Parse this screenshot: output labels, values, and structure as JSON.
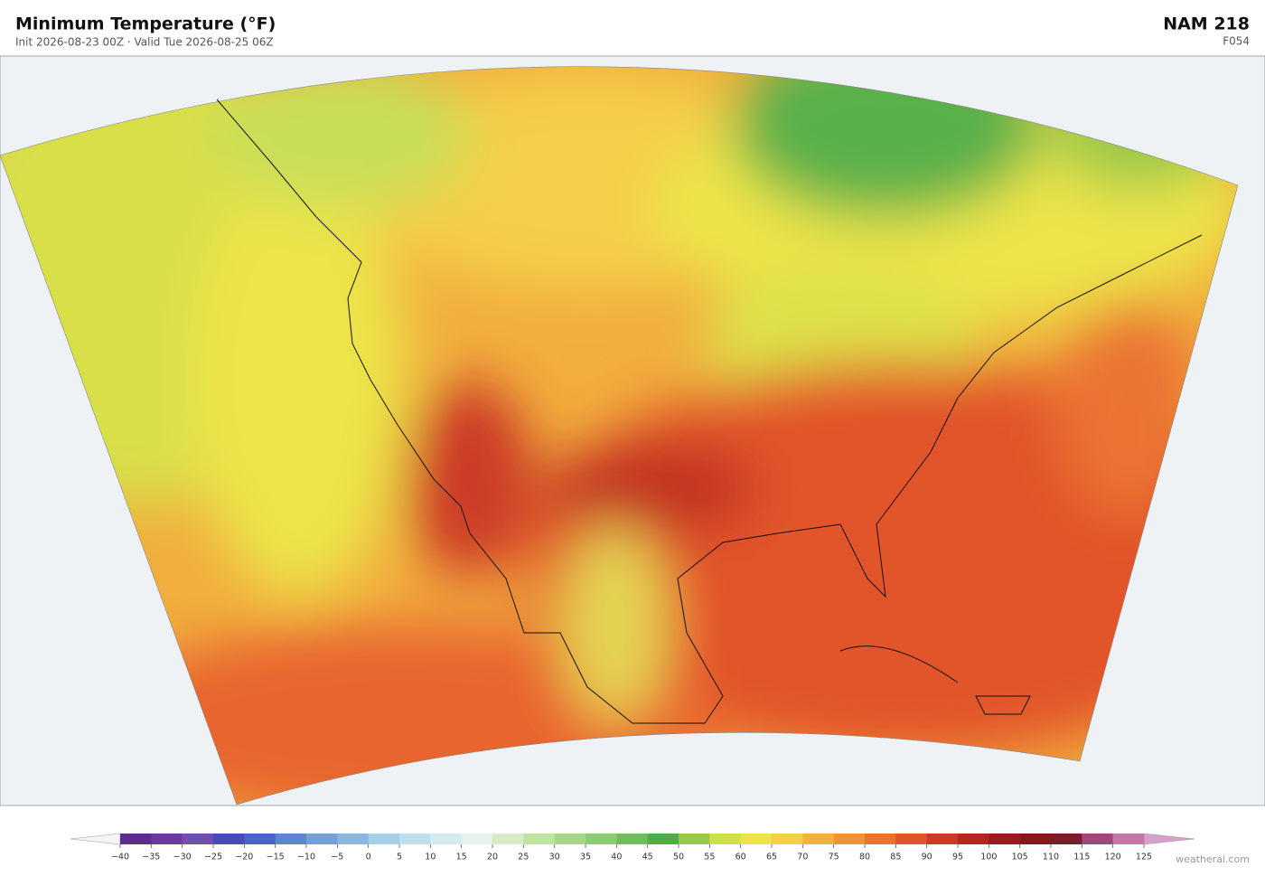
{
  "header": {
    "title": "Minimum Temperature  (°F)",
    "subtitle": "Init 2026-08-23 00Z   ·   Valid Tue 2026-08-25 06Z",
    "model": "NAM  218",
    "forecast_hour": "F054"
  },
  "colorbar": {
    "ticks": [
      {
        "value": -40,
        "label": "−40"
      },
      {
        "value": -35,
        "label": "−35"
      },
      {
        "value": -30,
        "label": "−30"
      },
      {
        "value": -25,
        "label": "−25"
      },
      {
        "value": -20,
        "label": "−20"
      },
      {
        "value": -15,
        "label": "−15"
      },
      {
        "value": -10,
        "label": "−10"
      },
      {
        "value": -5,
        "label": "−5"
      },
      0,
      5,
      10,
      15,
      20,
      25,
      30,
      35,
      40,
      45,
      50,
      55,
      60,
      65,
      70,
      75,
      80,
      85,
      90,
      95,
      100,
      105,
      110,
      115,
      120,
      125
    ],
    "colors": [
      "#5b2d8e",
      "#6a3a9e",
      "#6f4fb0",
      "#4a4bb8",
      "#4a64c8",
      "#5c86d0",
      "#74a0d8",
      "#8cb8e0",
      "#a6cfe8",
      "#bfdfee",
      "#d5ebf2",
      "#e5f2ee",
      "#d6ecc6",
      "#bfe3a0",
      "#a6d889",
      "#8ccd74",
      "#6fbe5e",
      "#4fad4a",
      "#9ac84a",
      "#cfe04a",
      "#ece44a",
      "#f4cf48",
      "#f3b23f",
      "#f09537",
      "#ea7330",
      "#e2542a",
      "#cc3a25",
      "#b32621",
      "#9a1c1e",
      "#86181b",
      "#7a1c2a",
      "#a04878",
      "#c378a8"
    ],
    "under_color": "#f4f4f8",
    "over_color": "#d6a0cc"
  },
  "footer": {
    "credit": "weatherai.com"
  }
}
